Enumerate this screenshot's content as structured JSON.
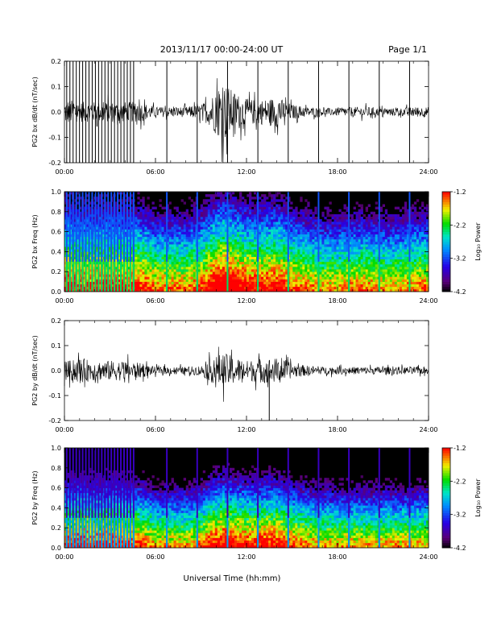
{
  "header": {
    "title": "2013/11/17  00:00-24:00 UT",
    "page": "Page 1/1"
  },
  "colors": {
    "trace": "#000000",
    "background": "#ffffff"
  },
  "chart_data": [
    {
      "type": "line",
      "ylabel": "PG2 bx dB/dt (nT/sec)",
      "xlim": [
        0,
        24
      ],
      "ylim": [
        -0.2,
        0.2
      ],
      "x_ticks": [
        "00:00",
        "06:00",
        "12:00",
        "18:00",
        "24:00"
      ],
      "y_ticks": [
        "-0.2",
        "-0.1",
        "0.0",
        "0.1",
        "0.2"
      ],
      "envelope": {
        "x_hours": [
          0.3,
          1,
          2,
          3,
          4,
          5,
          6,
          7,
          8,
          9,
          9.5,
          10,
          10.5,
          11,
          11.5,
          12,
          13,
          14,
          15,
          16,
          17,
          18,
          19,
          20,
          21,
          22,
          23,
          24
        ],
        "amplitude": [
          0.05,
          0.04,
          0.04,
          0.04,
          0.04,
          0.04,
          0.02,
          0.02,
          0.02,
          0.03,
          0.05,
          0.09,
          0.12,
          0.09,
          0.07,
          0.05,
          0.05,
          0.06,
          0.03,
          0.02,
          0.015,
          0.015,
          0.02,
          0.02,
          0.015,
          0.015,
          0.02,
          0.02
        ]
      },
      "spikes": {
        "dense_from": 0.15,
        "dense_to": 4.75,
        "dense_step": 0.21,
        "hours": [
          6.75,
          8.75,
          10.75,
          12.75,
          14.75,
          16.75,
          18.75,
          20.75,
          22.75
        ],
        "range": [
          -0.2,
          0.2
        ]
      }
    },
    {
      "type": "heatmap",
      "ylabel": "PG2 bx Freq (Hz)",
      "colorbar_label": "Log₁₀ Power",
      "xlim": [
        0,
        24
      ],
      "ylim": [
        0,
        1.0
      ],
      "clim": [
        -4.2,
        -1.2
      ],
      "x_ticks": [
        "00:00",
        "06:00",
        "12:00",
        "18:00",
        "24:00"
      ],
      "y_ticks": [
        "0.0",
        "0.2",
        "0.4",
        "0.6",
        "0.8",
        "1.0"
      ],
      "cbar_ticks": [
        "-1.2",
        "-2.2",
        "-3.2",
        "-4.2"
      ],
      "description": "broadband power near 0.0-0.1 Hz; vertical bright stripes at pulse times"
    },
    {
      "type": "line",
      "ylabel": "PG2 by dB/dt (nT/sec)",
      "xlim": [
        0,
        24
      ],
      "ylim": [
        -0.2,
        0.2
      ],
      "x_ticks": [
        "00:00",
        "06:00",
        "12:00",
        "18:00",
        "24:00"
      ],
      "y_ticks": [
        "-0.2",
        "-0.1",
        "0.0",
        "0.1",
        "0.2"
      ],
      "envelope": {
        "x_hours": [
          0.3,
          1,
          2,
          3,
          4,
          5,
          6,
          7,
          8,
          9,
          9.5,
          10,
          10.5,
          11,
          11.5,
          12,
          13,
          14,
          15,
          16,
          17,
          18,
          19,
          20,
          21,
          22,
          23,
          24
        ],
        "amplitude": [
          0.04,
          0.05,
          0.04,
          0.04,
          0.04,
          0.03,
          0.015,
          0.015,
          0.015,
          0.02,
          0.04,
          0.06,
          0.07,
          0.06,
          0.05,
          0.04,
          0.05,
          0.05,
          0.03,
          0.02,
          0.015,
          0.015,
          0.015,
          0.015,
          0.015,
          0.015,
          0.015,
          0.015
        ]
      },
      "spikes": {
        "hours": [
          13.5
        ],
        "range": [
          -0.2,
          0.0
        ]
      }
    },
    {
      "type": "heatmap",
      "ylabel": "PG2 by Freq (Hz)",
      "colorbar_label": "Log₁₀ Power",
      "xlim": [
        0,
        24
      ],
      "ylim": [
        0,
        1.0
      ],
      "clim": [
        -4.2,
        -1.2
      ],
      "x_ticks": [
        "00:00",
        "06:00",
        "12:00",
        "18:00",
        "24:00"
      ],
      "y_ticks": [
        "0.0",
        "0.2",
        "0.4",
        "0.6",
        "0.8",
        "1.0"
      ],
      "cbar_ticks": [
        "-1.2",
        "-2.2",
        "-3.2",
        "-4.2"
      ],
      "description": "low-frequency power band below 0.1 Hz; fainter vertical stripes"
    }
  ],
  "xlabel": "Universal Time (hh:mm)"
}
